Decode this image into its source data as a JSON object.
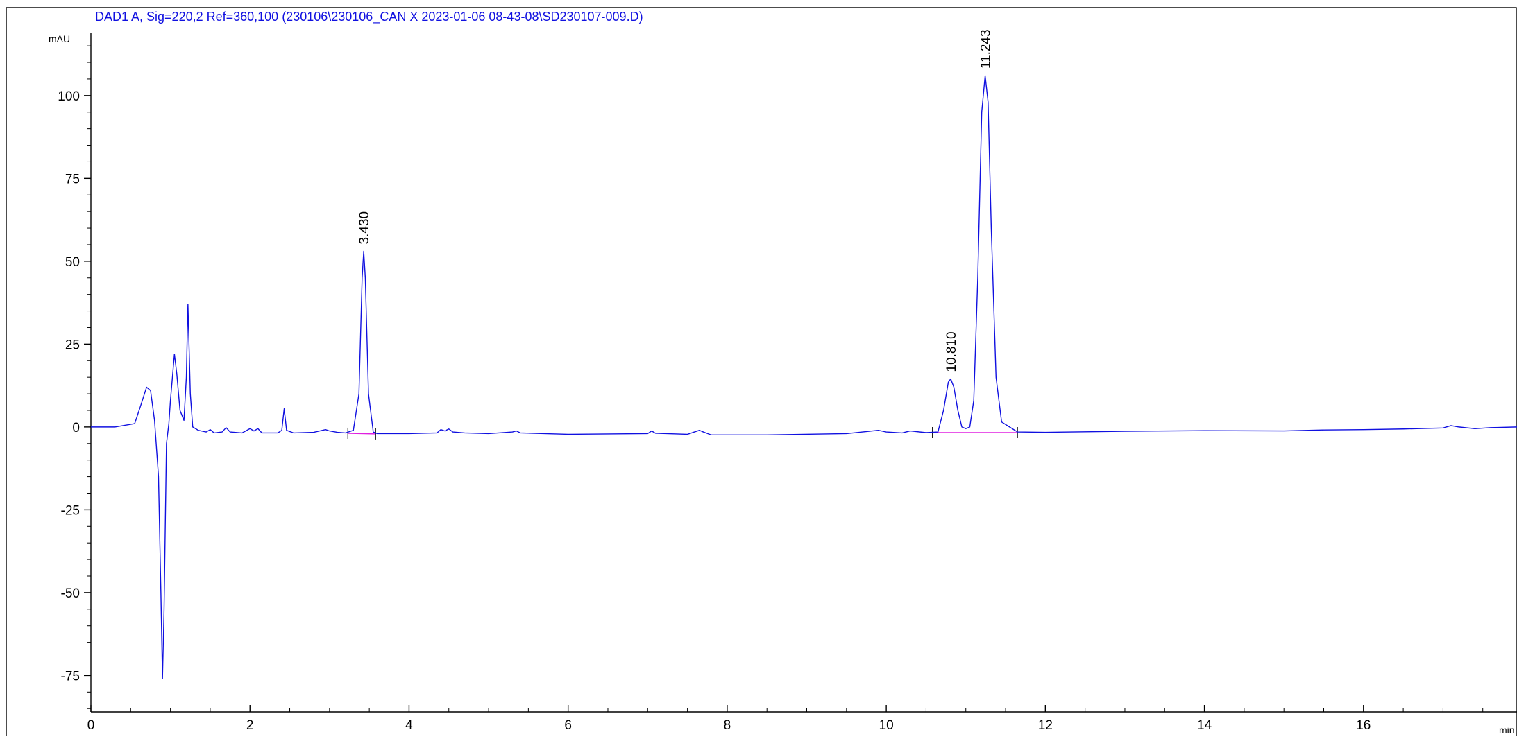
{
  "chart_data": {
    "type": "line",
    "title": "DAD1 A, Sig=220,2  Ref=360,100  (230106\\230106_CAN  X  2023-01-06  08-43-08\\SD230107-009.D)",
    "y_label": "mAU",
    "x_label": "min",
    "xlim": [
      0,
      17.93
    ],
    "ylim": [
      -86,
      119
    ],
    "xticks": [
      0,
      2,
      4,
      6,
      8,
      10,
      12,
      14,
      16
    ],
    "yticks": [
      -75,
      -50,
      -25,
      0,
      25,
      50,
      75,
      100
    ],
    "xminorticks": [
      0.5,
      1,
      1.5,
      2.5,
      3,
      3.5,
      4.5,
      5,
      5.5,
      6.5,
      7,
      7.5,
      8.5,
      9,
      9.5,
      10.5,
      11,
      11.5,
      12.5,
      13,
      13.5,
      14.5,
      15,
      15.5,
      16.5,
      17,
      17.5
    ],
    "yminorticks": [
      -85,
      -80,
      -70,
      -65,
      -60,
      -55,
      -45,
      -40,
      -35,
      -30,
      -20,
      -15,
      -10,
      -5,
      5,
      10,
      15,
      20,
      30,
      35,
      40,
      45,
      55,
      60,
      65,
      70,
      80,
      85,
      90,
      95,
      105,
      110,
      115
    ],
    "x": [
      0,
      0.3,
      0.55,
      0.62,
      0.7,
      0.75,
      0.8,
      0.85,
      0.88,
      0.9,
      0.92,
      0.95,
      0.98,
      1.0,
      1.05,
      1.08,
      1.12,
      1.17,
      1.2,
      1.22,
      1.25,
      1.28,
      1.35,
      1.45,
      1.5,
      1.55,
      1.65,
      1.7,
      1.75,
      1.9,
      2.0,
      2.05,
      2.1,
      2.15,
      2.35,
      2.4,
      2.43,
      2.46,
      2.55,
      2.8,
      2.95,
      3.0,
      3.1,
      3.2,
      3.3,
      3.37,
      3.41,
      3.43,
      3.45,
      3.49,
      3.55,
      3.6,
      4.0,
      4.35,
      4.4,
      4.45,
      4.5,
      4.55,
      4.7,
      5.0,
      5.3,
      5.35,
      5.4,
      6.0,
      7.0,
      7.05,
      7.1,
      7.5,
      7.65,
      7.7,
      7.8,
      8.5,
      9.5,
      9.9,
      10.0,
      10.2,
      10.3,
      10.5,
      10.65,
      10.72,
      10.78,
      10.81,
      10.85,
      10.9,
      10.95,
      11.0,
      11.05,
      11.1,
      11.15,
      11.2,
      11.243,
      11.28,
      11.32,
      11.38,
      11.45,
      11.55,
      11.65,
      12,
      13,
      14,
      15,
      15.5,
      16,
      16.5,
      17.0,
      17.1,
      17.2,
      17.4,
      17.6,
      17.93
    ],
    "series": [
      {
        "color": "#1010e0",
        "values": [
          0,
          0,
          1,
          6,
          12,
          11,
          2,
          -15,
          -50,
          -76,
          -55,
          -5,
          1,
          8,
          22,
          16,
          5,
          2,
          15,
          37,
          10,
          0,
          -1,
          -1.5,
          -0.8,
          -1.8,
          -1.5,
          -0.2,
          -1.5,
          -1.8,
          -0.5,
          -1.2,
          -0.5,
          -1.8,
          -1.8,
          -1,
          5.5,
          -1,
          -1.8,
          -1.6,
          -0.8,
          -1.2,
          -1.6,
          -1.8,
          -1,
          10,
          45,
          53,
          45,
          10,
          -1.5,
          -2,
          -2,
          -1.8,
          -0.8,
          -1.2,
          -0.6,
          -1.5,
          -1.8,
          -2,
          -1.5,
          -1.2,
          -1.8,
          -2.2,
          -2,
          -1.2,
          -1.9,
          -2.2,
          -1,
          -1.5,
          -2.4,
          -2.4,
          -2,
          -1,
          -1.5,
          -1.8,
          -1.2,
          -1.7,
          -1.5,
          5,
          13.5,
          14.5,
          12,
          5,
          0,
          -0.5,
          0,
          8,
          45,
          95,
          106,
          98,
          60,
          15,
          1.5,
          0,
          -1.5,
          -1.6,
          -1.3,
          -1.1,
          -1.2,
          -0.9,
          -0.8,
          -0.6,
          -0.3,
          0.4,
          0,
          -0.5,
          -0.2,
          0
        ]
      }
    ],
    "baselines": [
      {
        "color": "#e020e0",
        "x": [
          3.23,
          3.58
        ],
        "y": [
          -1.9,
          -2.1
        ]
      },
      {
        "color": "#e020e0",
        "x": [
          10.58,
          11.65
        ],
        "y": [
          -1.7,
          -1.7
        ]
      }
    ],
    "annotations": [
      {
        "text": "3.430",
        "x": 3.43,
        "y": 53
      },
      {
        "text": "10.810",
        "x": 10.81,
        "y": 14.5
      },
      {
        "text": "11.243",
        "x": 11.243,
        "y": 106
      }
    ]
  }
}
